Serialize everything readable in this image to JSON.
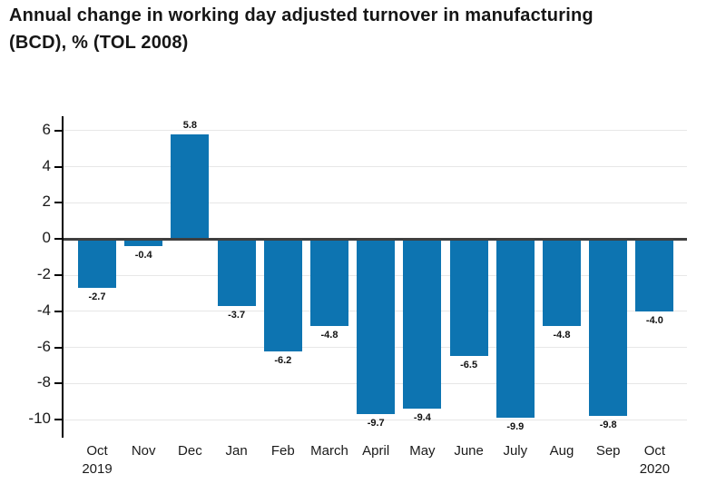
{
  "page": {
    "title_line1": "Annual change in working day adjusted turnover in manufacturing",
    "title_line2": "(BCD), % (TOL 2008)"
  },
  "chart_data": {
    "type": "bar",
    "title": "Annual change in working day adjusted turnover in manufacturing (BCD), % (TOL 2008)",
    "categories": [
      "Oct",
      "Nov",
      "Dec",
      "Jan",
      "Feb",
      "March",
      "April",
      "May",
      "June",
      "July",
      "Aug",
      "Sep",
      "Oct"
    ],
    "category_sublabels": [
      "2019",
      "",
      "",
      "",
      "",
      "",
      "",
      "",
      "",
      "",
      "",
      "",
      "2020"
    ],
    "values": [
      -2.7,
      -0.4,
      5.8,
      -3.7,
      -6.2,
      -4.8,
      -9.7,
      -9.4,
      -6.5,
      -9.9,
      -4.8,
      -9.8,
      -4.0
    ],
    "value_labels": [
      "-2.7",
      "-0.4",
      "5.8",
      "-3.7",
      "-6.2",
      "-4.8",
      "-9.7",
      "-9.4",
      "-6.5",
      "-9.9",
      "-4.8",
      "-9.8",
      "-4.0"
    ],
    "xlabel": "",
    "ylabel": "",
    "ylim": [
      -10.8,
      6.8
    ],
    "yticks": [
      6,
      4,
      2,
      0,
      -2,
      -4,
      -6,
      -8,
      -10
    ],
    "grid": true,
    "legend": false,
    "bar_color": "#0d74b1",
    "grid_color": "#e7e7e7",
    "zero_line_color": "#3f3f3f",
    "axis_color": "#000000",
    "label_color": "#111111"
  }
}
